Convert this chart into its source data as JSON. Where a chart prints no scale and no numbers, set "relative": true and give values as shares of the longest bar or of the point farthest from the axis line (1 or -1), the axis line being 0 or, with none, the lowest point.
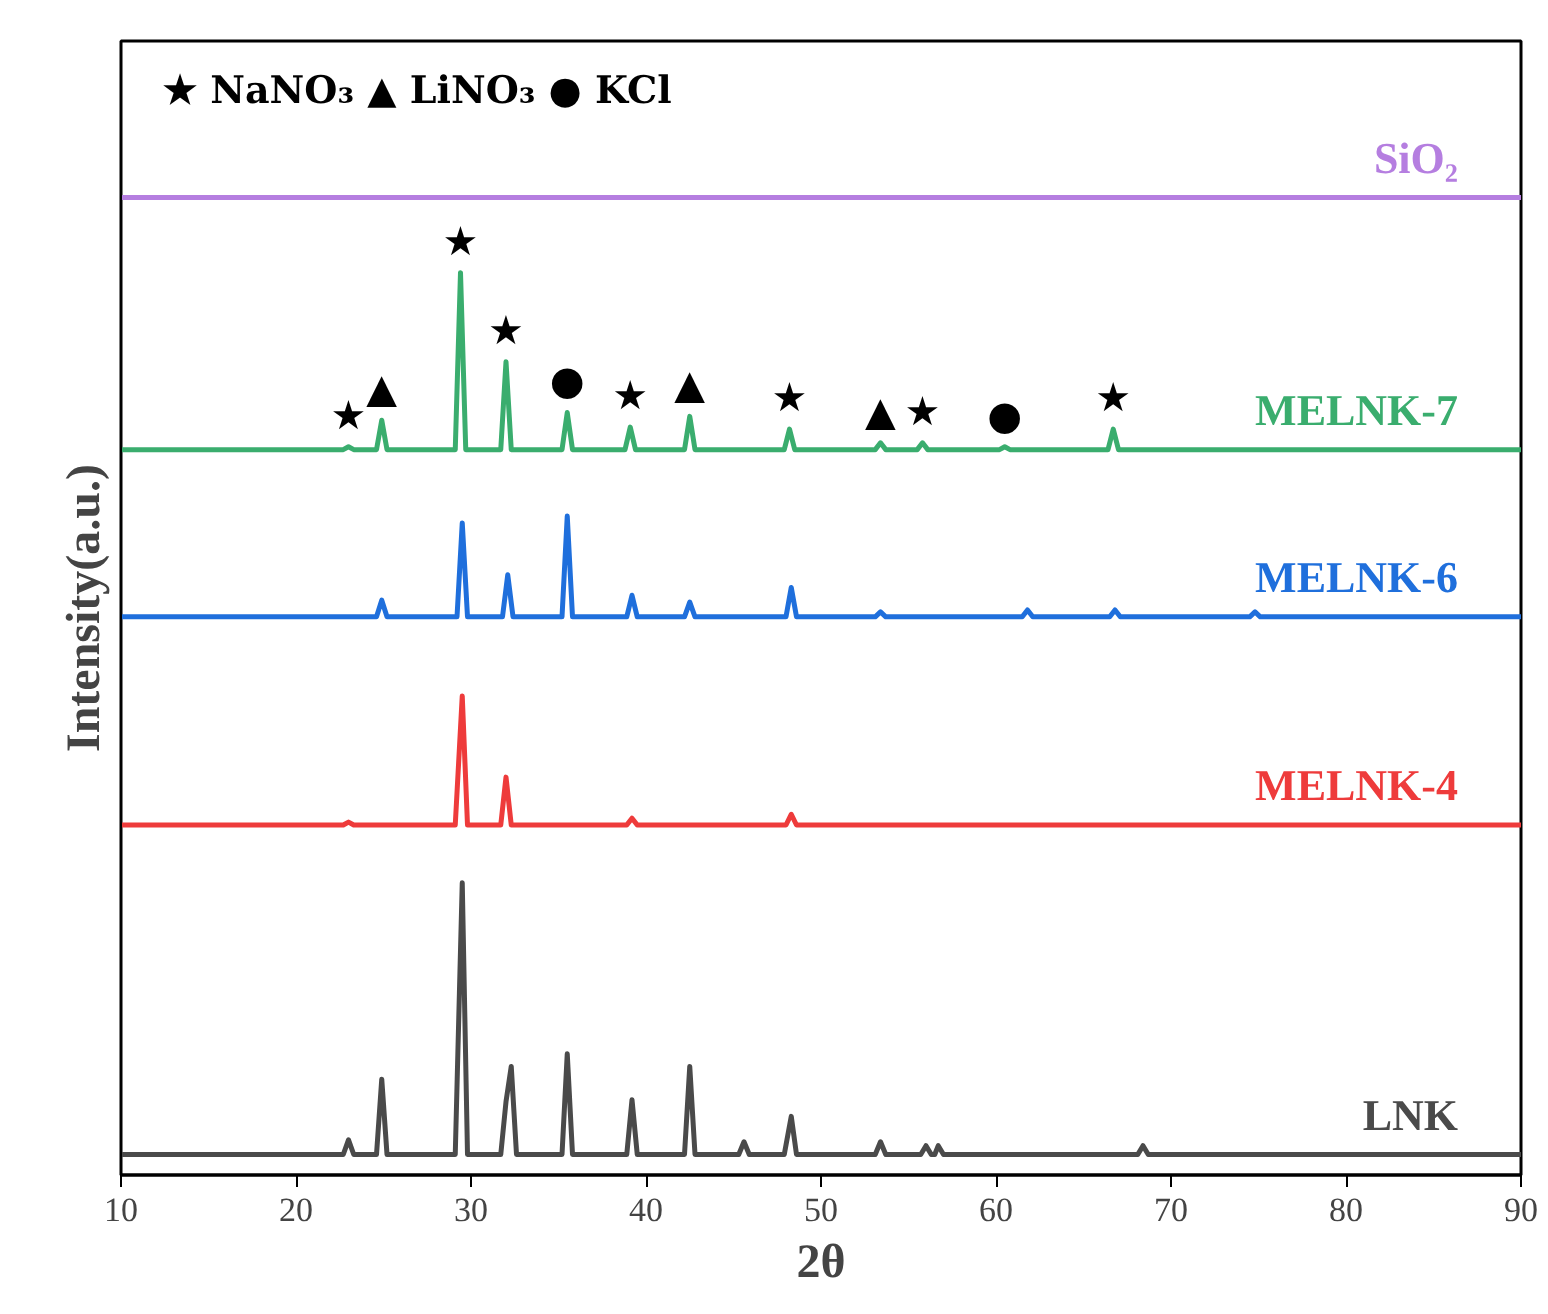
{
  "chart_data": {
    "type": "line",
    "relative": true,
    "xlabel": "2θ",
    "ylabel": "Intensity(a.u.)",
    "xlim": [
      10,
      90
    ],
    "xticks": [
      10,
      20,
      30,
      40,
      50,
      60,
      70,
      80,
      90
    ],
    "grid": false,
    "marker": "none",
    "line_style": "solid",
    "series": [
      {
        "name": "SiO₂",
        "color": "#b57ee0",
        "x": [
          10,
          90
        ],
        "values": [
          1.0,
          1.0
        ]
      },
      {
        "name": "MELNK-7",
        "color": "#3aad6e",
        "x": [
          10,
          22.7,
          23.0,
          23.3,
          24.6,
          24.9,
          25.2,
          29.1,
          29.4,
          29.7,
          31.7,
          32.0,
          32.3,
          35.2,
          35.5,
          35.8,
          38.8,
          39.1,
          39.4,
          42.2,
          42.5,
          42.8,
          47.9,
          48.2,
          48.5,
          53.1,
          53.4,
          53.7,
          55.5,
          55.8,
          56.1,
          60.2,
          60.5,
          60.8,
          66.4,
          66.7,
          67.0,
          90
        ],
        "values": [
          0.742,
          0.742,
          0.745,
          0.742,
          0.742,
          0.772,
          0.742,
          0.742,
          0.923,
          0.742,
          0.742,
          0.832,
          0.742,
          0.742,
          0.78,
          0.742,
          0.742,
          0.765,
          0.742,
          0.742,
          0.776,
          0.742,
          0.742,
          0.763,
          0.742,
          0.742,
          0.749,
          0.742,
          0.742,
          0.749,
          0.742,
          0.742,
          0.745,
          0.742,
          0.742,
          0.763,
          0.742,
          0.742
        ]
      },
      {
        "name": "MELNK-6",
        "color": "#1f6fdc",
        "x": [
          10,
          24.6,
          24.9,
          25.2,
          29.2,
          29.5,
          29.8,
          31.8,
          32.1,
          32.4,
          35.2,
          35.5,
          35.8,
          38.9,
          39.2,
          39.5,
          42.2,
          42.5,
          42.8,
          48.0,
          48.3,
          48.6,
          53.1,
          53.4,
          53.7,
          61.5,
          61.8,
          62.1,
          66.5,
          66.8,
          67.1,
          74.5,
          74.8,
          75.1,
          90
        ],
        "values": [
          0.571,
          0.571,
          0.588,
          0.571,
          0.571,
          0.667,
          0.571,
          0.571,
          0.614,
          0.571,
          0.571,
          0.674,
          0.571,
          0.571,
          0.593,
          0.571,
          0.571,
          0.586,
          0.571,
          0.571,
          0.601,
          0.571,
          0.571,
          0.576,
          0.571,
          0.571,
          0.578,
          0.571,
          0.571,
          0.578,
          0.571,
          0.571,
          0.576,
          0.571,
          0.571
        ]
      },
      {
        "name": "MELNK-4",
        "color": "#ee3b3b",
        "x": [
          10,
          22.7,
          23.0,
          23.3,
          29.1,
          29.5,
          29.8,
          31.7,
          32.0,
          32.3,
          38.9,
          39.2,
          39.5,
          48.0,
          48.3,
          48.6,
          90
        ],
        "values": [
          0.358,
          0.358,
          0.361,
          0.358,
          0.358,
          0.49,
          0.358,
          0.358,
          0.407,
          0.358,
          0.358,
          0.365,
          0.358,
          0.358,
          0.369,
          0.358,
          0.358
        ]
      },
      {
        "name": "LNK",
        "color": "#4a4a4a",
        "x": [
          10,
          22.7,
          23.0,
          23.3,
          24.6,
          24.9,
          25.2,
          29.1,
          29.5,
          29.8,
          31.7,
          32.0,
          32.3,
          32.6,
          35.2,
          35.5,
          35.8,
          38.9,
          39.2,
          39.5,
          42.2,
          42.5,
          42.8,
          45.3,
          45.6,
          45.9,
          47.9,
          48.3,
          48.6,
          53.1,
          53.4,
          53.7,
          55.7,
          56.0,
          56.3,
          56.5,
          56.7,
          57.0,
          68.1,
          68.4,
          68.7,
          90
        ],
        "values": [
          0.021,
          0.021,
          0.036,
          0.021,
          0.021,
          0.098,
          0.021,
          0.021,
          0.299,
          0.021,
          0.021,
          0.075,
          0.111,
          0.021,
          0.021,
          0.124,
          0.021,
          0.021,
          0.077,
          0.021,
          0.021,
          0.111,
          0.021,
          0.021,
          0.034,
          0.021,
          0.021,
          0.06,
          0.021,
          0.021,
          0.034,
          0.021,
          0.021,
          0.03,
          0.021,
          0.021,
          0.03,
          0.021,
          0.021,
          0.03,
          0.021,
          0.021
        ]
      }
    ],
    "annotations": [
      "★ NaNO₃  ▲ LiNO₃  ● KCl",
      {
        "text": "★",
        "x": 23.0,
        "y": 0.745
      },
      {
        "text": "▲",
        "x": 24.9,
        "y": 0.772
      },
      {
        "text": "★",
        "x": 29.4,
        "y": 0.923
      },
      {
        "text": "★",
        "x": 32.0,
        "y": 0.832
      },
      {
        "text": "●",
        "x": 35.5,
        "y": 0.78
      },
      {
        "text": "★",
        "x": 39.1,
        "y": 0.765
      },
      {
        "text": "▲",
        "x": 42.5,
        "y": 0.776
      },
      {
        "text": "★",
        "x": 48.2,
        "y": 0.763
      },
      {
        "text": "▲",
        "x": 53.4,
        "y": 0.749
      },
      {
        "text": "★",
        "x": 55.8,
        "y": 0.749
      },
      {
        "text": "●",
        "x": 60.5,
        "y": 0.745
      },
      {
        "text": "★",
        "x": 66.7,
        "y": 0.763
      }
    ]
  }
}
